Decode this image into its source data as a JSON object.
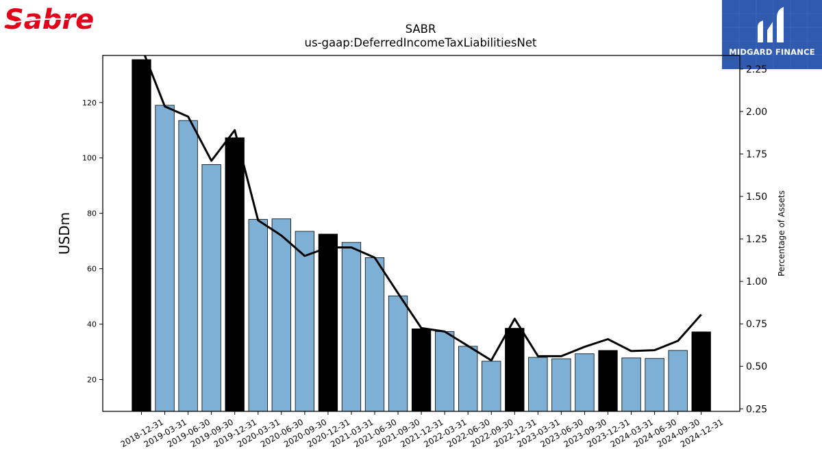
{
  "brand": {
    "company_logo_text": "Sabre",
    "publisher_logo_text": "MIDGARD FINANCE",
    "company_color": "#e2001a",
    "publisher_color": "#2f5aae"
  },
  "chart_data": {
    "type": "bar",
    "title": "SABR",
    "subtitle": "us-gaap:DeferredIncomeTaxLiabilitiesNet",
    "ylabel": "USDm",
    "y2label": "Percentage of Assets",
    "ylim": [
      8.5,
      137
    ],
    "y2lim": [
      0.235,
      2.33
    ],
    "yticks": [
      20,
      40,
      60,
      80,
      100,
      120
    ],
    "y2ticks": [
      0.25,
      0.5,
      0.75,
      1.0,
      1.25,
      1.5,
      1.75,
      2.0,
      2.25
    ],
    "y2tick_labels": [
      "0.25",
      "0.50",
      "0.75",
      "1.00",
      "1.25",
      "1.50",
      "1.75",
      "2.00",
      "2.25"
    ],
    "categories": [
      "2018-12-31",
      "2019-03-31",
      "2019-06-30",
      "2019-09-30",
      "2019-12-31",
      "2020-03-31",
      "2020-06-30",
      "2020-09-30",
      "2020-12-31",
      "2021-03-31",
      "2021-06-30",
      "2021-09-30",
      "2021-12-31",
      "2022-03-31",
      "2022-06-30",
      "2022-09-30",
      "2022-12-31",
      "2023-03-31",
      "2023-06-30",
      "2023-09-30",
      "2023-12-31",
      "2024-03-31",
      "2024-06-30",
      "2024-09-30",
      "2024-12-31"
    ],
    "series": [
      {
        "kind": "bar",
        "axis": "left",
        "values": [
          135.5,
          119.0,
          113.5,
          97.6,
          107.3,
          77.8,
          78.0,
          73.5,
          72.5,
          69.5,
          64.0,
          50.2,
          38.3,
          37.3,
          32.0,
          26.6,
          38.5,
          28.0,
          27.5,
          29.3,
          30.5,
          27.8,
          27.6,
          30.5,
          37.2
        ],
        "year_end_color": "#000000",
        "quarter_color": "#7eb0d5"
      },
      {
        "kind": "line",
        "axis": "right",
        "color": "#000000",
        "values": [
          2.38,
          2.03,
          1.97,
          1.71,
          1.89,
          1.36,
          1.27,
          1.15,
          1.2,
          1.2,
          1.14,
          0.93,
          0.725,
          0.705,
          0.62,
          0.535,
          0.78,
          0.56,
          0.56,
          0.615,
          0.66,
          0.59,
          0.595,
          0.65,
          0.805
        ]
      }
    ]
  }
}
